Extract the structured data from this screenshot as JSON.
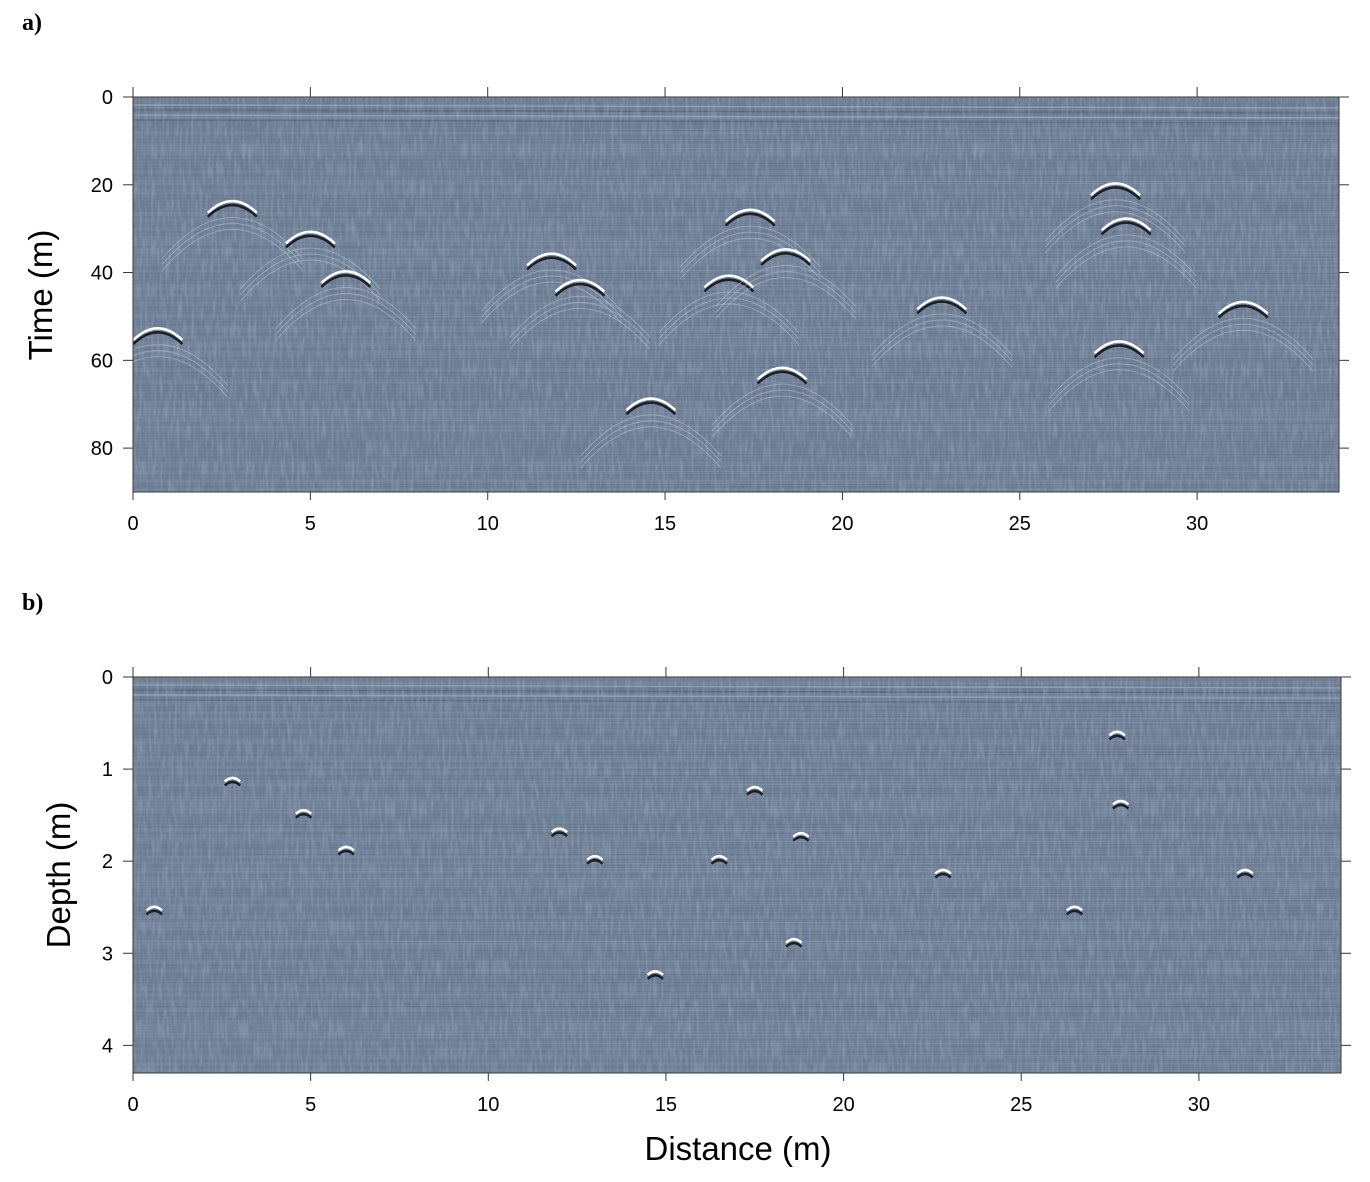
{
  "chart_data": [
    {
      "panel_label": "a)",
      "type": "heatmap",
      "description_type": "GPR radargram",
      "xlabel": "",
      "ylabel": "Time (m)",
      "xlim": [
        0,
        34
      ],
      "ylim": [
        0,
        90
      ],
      "y_inverted": true,
      "xticks": [
        0,
        5,
        10,
        15,
        20,
        25,
        30
      ],
      "yticks": [
        0,
        20,
        40,
        60,
        80
      ],
      "background_color": "#6e7f96",
      "grid": false,
      "reflections": [
        {
          "x": 2.8,
          "y": 24
        },
        {
          "x": 5.0,
          "y": 31
        },
        {
          "x": 6.0,
          "y": 40
        },
        {
          "x": 0.7,
          "y": 53
        },
        {
          "x": 11.8,
          "y": 36
        },
        {
          "x": 12.6,
          "y": 42
        },
        {
          "x": 14.6,
          "y": 69
        },
        {
          "x": 16.8,
          "y": 41
        },
        {
          "x": 17.4,
          "y": 26
        },
        {
          "x": 18.4,
          "y": 35
        },
        {
          "x": 18.3,
          "y": 62
        },
        {
          "x": 22.8,
          "y": 46
        },
        {
          "x": 27.7,
          "y": 20
        },
        {
          "x": 28.0,
          "y": 28
        },
        {
          "x": 27.8,
          "y": 56
        },
        {
          "x": 31.3,
          "y": 47
        }
      ]
    },
    {
      "panel_label": "b)",
      "type": "heatmap",
      "description_type": "GPR depth section",
      "xlabel": "Distance (m)",
      "ylabel": "Depth (m)",
      "xlim": [
        0,
        34
      ],
      "ylim": [
        0,
        4.3
      ],
      "y_inverted": true,
      "xticks": [
        0,
        5,
        10,
        15,
        20,
        25,
        30
      ],
      "yticks": [
        0,
        1,
        2,
        3,
        4
      ],
      "background_color": "#6e7f96",
      "grid": false,
      "reflections": [
        {
          "x": 2.8,
          "y": 1.1
        },
        {
          "x": 0.6,
          "y": 2.5
        },
        {
          "x": 4.8,
          "y": 1.45
        },
        {
          "x": 6.0,
          "y": 1.85
        },
        {
          "x": 12.0,
          "y": 1.65
        },
        {
          "x": 13.0,
          "y": 1.95
        },
        {
          "x": 14.7,
          "y": 3.2
        },
        {
          "x": 16.5,
          "y": 1.95
        },
        {
          "x": 17.5,
          "y": 1.2
        },
        {
          "x": 18.8,
          "y": 1.7
        },
        {
          "x": 18.6,
          "y": 2.85
        },
        {
          "x": 22.8,
          "y": 2.1
        },
        {
          "x": 27.7,
          "y": 0.6
        },
        {
          "x": 27.8,
          "y": 1.35
        },
        {
          "x": 26.5,
          "y": 2.5
        },
        {
          "x": 31.3,
          "y": 2.1
        }
      ]
    }
  ]
}
